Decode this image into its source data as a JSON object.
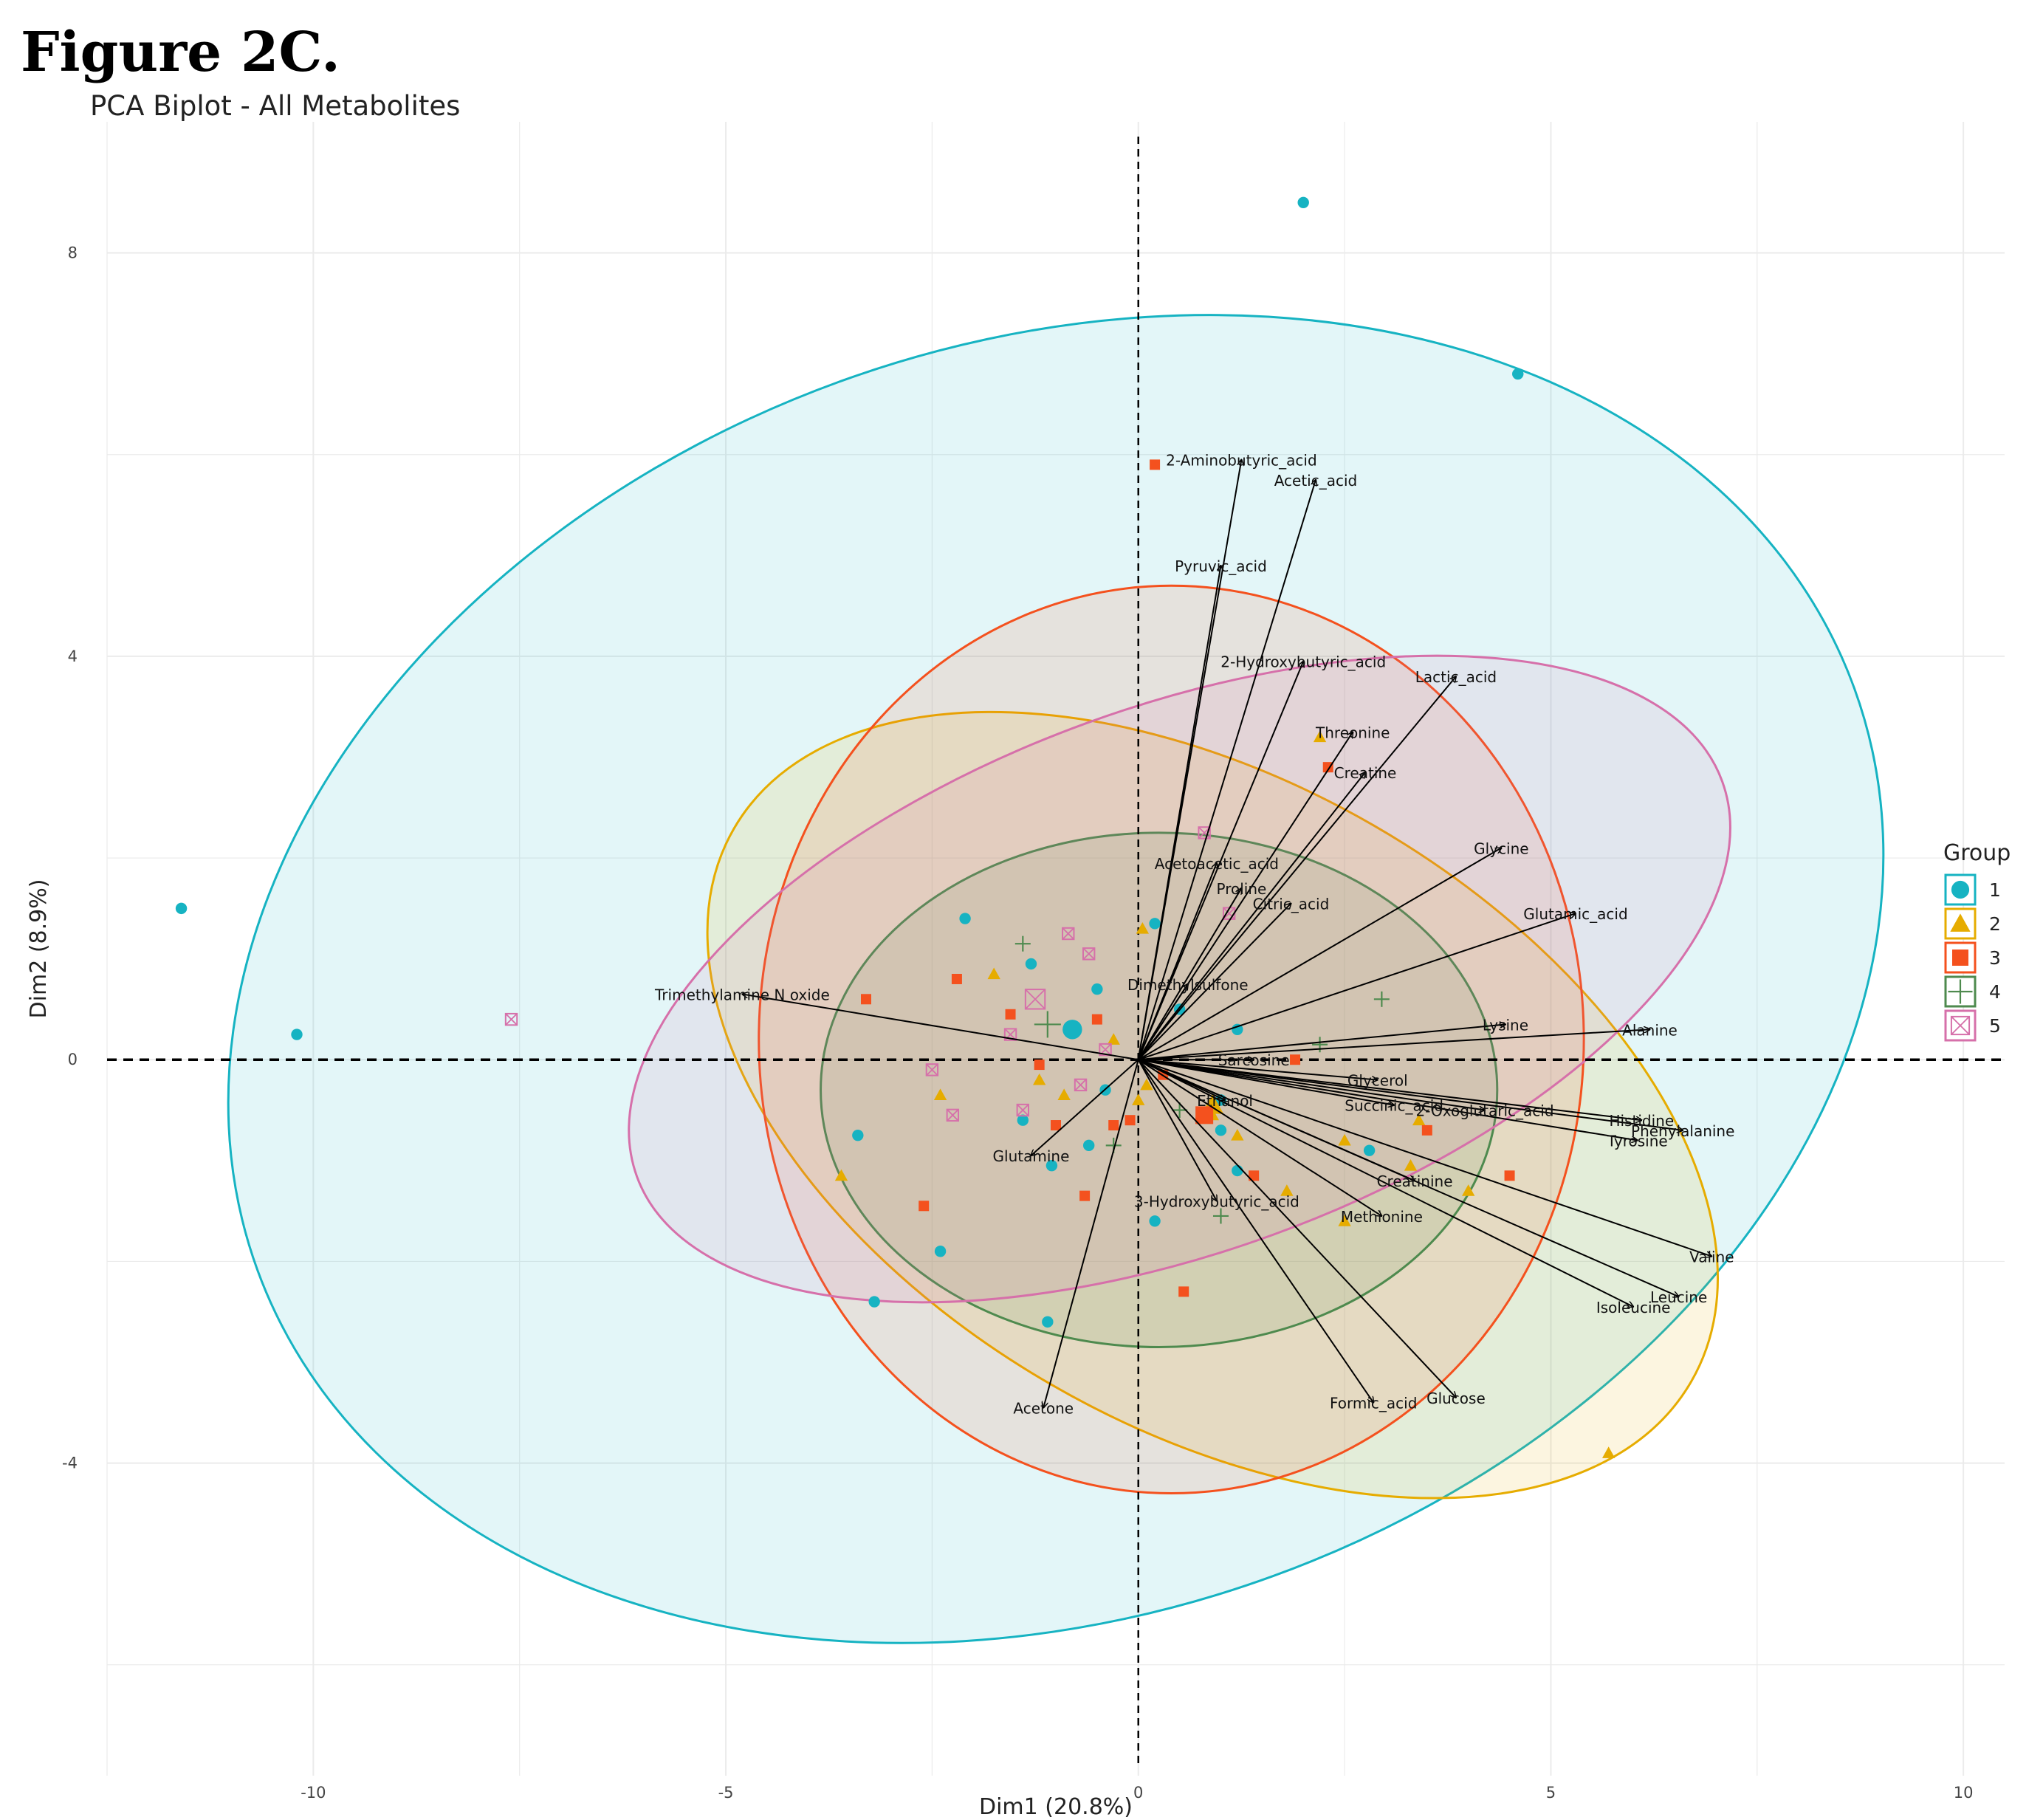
{
  "figure_label": "Figure 2C.",
  "chart_data": {
    "type": "scatter",
    "subtype": "pca-biplot",
    "title": "PCA Biplot - All Metabolites",
    "xlabel": "Dim1 (20.8%)",
    "ylabel": "Dim2 (8.9%)",
    "xlim": [
      -12.5,
      10.5
    ],
    "ylim": [
      -7.1,
      9.3
    ],
    "x_ticks": [
      -10,
      -5,
      0,
      5,
      10
    ],
    "y_ticks": [
      8,
      4,
      0,
      -4
    ],
    "grid": true,
    "reference_lines": {
      "x": 0,
      "y": 0,
      "style": "dashed"
    },
    "legend": {
      "title": "Group",
      "position": "right",
      "entries": [
        {
          "label": "1",
          "color": "#16b3c2",
          "marker": "circle"
        },
        {
          "label": "2",
          "color": "#e6ac00",
          "marker": "triangle"
        },
        {
          "label": "3",
          "color": "#f4511e",
          "marker": "square"
        },
        {
          "label": "4",
          "color": "#4e8a4e",
          "marker": "plus"
        },
        {
          "label": "5",
          "color": "#d670aa",
          "marker": "square-x"
        }
      ]
    },
    "groups": [
      {
        "name": "1",
        "color": "#16b3c2",
        "marker": "circle",
        "ellipse": {
          "center": [
            -1.0,
            0.8
          ],
          "rx": 10.3,
          "ry": 6.3,
          "angle_deg": 20
        },
        "centroid": [
          -0.8,
          0.3
        ],
        "points": [
          [
            2.0,
            8.5
          ],
          [
            4.6,
            6.8
          ],
          [
            -11.6,
            1.5
          ],
          [
            -10.2,
            0.25
          ],
          [
            -2.1,
            1.4
          ],
          [
            -1.3,
            0.95
          ],
          [
            -0.5,
            0.7
          ],
          [
            0.2,
            1.35
          ],
          [
            -1.4,
            -0.6
          ],
          [
            -1.05,
            -1.05
          ],
          [
            -0.6,
            -0.85
          ],
          [
            -3.4,
            -0.75
          ],
          [
            -2.4,
            -1.9
          ],
          [
            -3.2,
            -2.4
          ],
          [
            -1.1,
            -2.6
          ],
          [
            0.2,
            -1.6
          ],
          [
            1.2,
            -1.1
          ],
          [
            2.8,
            -0.9
          ],
          [
            1.0,
            -0.4
          ],
          [
            0.8,
            -0.55
          ],
          [
            0.5,
            0.5
          ],
          [
            1.2,
            0.3
          ],
          [
            -0.4,
            -0.3
          ],
          [
            1.0,
            -0.7
          ]
        ]
      },
      {
        "name": "2",
        "color": "#e6ac00",
        "marker": "triangle",
        "ellipse": {
          "center": [
            0.9,
            -0.45
          ],
          "rx": 6.7,
          "ry": 3.2,
          "angle_deg": -30
        },
        "centroid": [
          0.9,
          -0.45
        ],
        "points": [
          [
            2.2,
            3.2
          ],
          [
            0.05,
            1.3
          ],
          [
            -1.75,
            0.85
          ],
          [
            -2.4,
            -0.35
          ],
          [
            -1.2,
            -0.2
          ],
          [
            -0.9,
            -0.35
          ],
          [
            -3.6,
            -1.15
          ],
          [
            0.1,
            -0.25
          ],
          [
            1.2,
            -0.75
          ],
          [
            1.8,
            -1.3
          ],
          [
            2.5,
            -0.8
          ],
          [
            2.5,
            -1.6
          ],
          [
            3.4,
            -0.6
          ],
          [
            3.3,
            -1.05
          ],
          [
            4.0,
            -1.3
          ],
          [
            5.7,
            -3.9
          ],
          [
            0.0,
            -0.4
          ],
          [
            0.9,
            -0.55
          ],
          [
            -0.3,
            0.2
          ]
        ]
      },
      {
        "name": "3",
        "color": "#f4511e",
        "marker": "square",
        "ellipse": {
          "center": [
            0.4,
            0.2
          ],
          "rx": 5.0,
          "ry": 4.5,
          "angle_deg": 0
        },
        "centroid": [
          0.8,
          -0.55
        ],
        "points": [
          [
            0.2,
            5.9
          ],
          [
            2.3,
            2.9
          ],
          [
            -3.3,
            0.6
          ],
          [
            -2.2,
            0.8
          ],
          [
            -1.55,
            0.45
          ],
          [
            -0.5,
            0.4
          ],
          [
            -1.2,
            -0.05
          ],
          [
            -1.0,
            -0.65
          ],
          [
            -0.3,
            -0.65
          ],
          [
            -0.1,
            -0.6
          ],
          [
            -0.65,
            -1.35
          ],
          [
            -2.6,
            -1.45
          ],
          [
            1.4,
            -1.15
          ],
          [
            3.5,
            -0.7
          ],
          [
            4.5,
            -1.15
          ],
          [
            0.55,
            -2.3
          ],
          [
            1.9,
            0.0
          ],
          [
            0.3,
            -0.15
          ]
        ]
      },
      {
        "name": "4",
        "color": "#4e8a4e",
        "marker": "plus",
        "ellipse": {
          "center": [
            0.25,
            -0.3
          ],
          "rx": 4.1,
          "ry": 2.55,
          "angle_deg": 0
        },
        "centroid": [
          -1.1,
          0.35
        ],
        "points": [
          [
            -1.4,
            1.15
          ],
          [
            2.95,
            0.6
          ],
          [
            1.0,
            -1.55
          ],
          [
            2.2,
            0.15
          ],
          [
            -0.3,
            -0.85
          ],
          [
            0.5,
            -0.5
          ]
        ]
      },
      {
        "name": "5",
        "color": "#d670aa",
        "marker": "square-x",
        "ellipse": {
          "center": [
            0.5,
            0.8
          ],
          "rx": 7.0,
          "ry": 2.7,
          "angle_deg": 20
        },
        "centroid": [
          -1.25,
          0.6
        ],
        "points": [
          [
            -7.6,
            0.4
          ],
          [
            -0.85,
            1.25
          ],
          [
            -0.6,
            1.05
          ],
          [
            0.8,
            2.25
          ],
          [
            1.1,
            1.45
          ],
          [
            -2.5,
            -0.1
          ],
          [
            -2.25,
            -0.55
          ],
          [
            -1.4,
            -0.5
          ],
          [
            -0.7,
            -0.25
          ],
          [
            -0.4,
            0.1
          ],
          [
            -1.55,
            0.25
          ]
        ]
      }
    ],
    "loadings": [
      {
        "name": "2-Aminobutyric_acid",
        "x": 1.25,
        "y": 5.95
      },
      {
        "name": "Acetic_acid",
        "x": 2.15,
        "y": 5.75
      },
      {
        "name": "Pyruvic_acid",
        "x": 1.0,
        "y": 4.9
      },
      {
        "name": "2-Hydroxybutyric_acid",
        "x": 2.0,
        "y": 3.95
      },
      {
        "name": "Lactic_acid",
        "x": 3.85,
        "y": 3.8
      },
      {
        "name": "Threonine",
        "x": 2.6,
        "y": 3.25
      },
      {
        "name": "Creatine",
        "x": 2.75,
        "y": 2.85
      },
      {
        "name": "Glycine",
        "x": 4.4,
        "y": 2.1
      },
      {
        "name": "Glutamic_acid",
        "x": 5.3,
        "y": 1.45
      },
      {
        "name": "Acetoacetic_acid",
        "x": 0.95,
        "y": 1.95
      },
      {
        "name": "Proline",
        "x": 1.25,
        "y": 1.7
      },
      {
        "name": "Citric_acid",
        "x": 1.85,
        "y": 1.55
      },
      {
        "name": "Dimethylsulfone",
        "x": 0.6,
        "y": 0.75
      },
      {
        "name": "Trimethylamine N oxide",
        "x": -4.8,
        "y": 0.65
      },
      {
        "name": "Lysine",
        "x": 4.45,
        "y": 0.35
      },
      {
        "name": "Alanine",
        "x": 6.2,
        "y": 0.3
      },
      {
        "name": "Sarcosine",
        "x": 1.4,
        "y": 0.0
      },
      {
        "name": "Glycerol",
        "x": 2.9,
        "y": -0.2
      },
      {
        "name": "Histidine",
        "x": 6.1,
        "y": -0.6
      },
      {
        "name": "Succinic_acid",
        "x": 3.1,
        "y": -0.45
      },
      {
        "name": "Ethanol",
        "x": 1.05,
        "y": -0.4
      },
      {
        "name": "2-Oxoglutaric_acid",
        "x": 4.2,
        "y": -0.5
      },
      {
        "name": "Phenylalanine",
        "x": 6.6,
        "y": -0.7
      },
      {
        "name": "Tyrosine",
        "x": 6.05,
        "y": -0.8
      },
      {
        "name": "Glutamine",
        "x": -1.3,
        "y": -0.95
      },
      {
        "name": "3-Hydroxybutyric_acid",
        "x": 0.95,
        "y": -1.4
      },
      {
        "name": "Creatinine",
        "x": 3.35,
        "y": -1.2
      },
      {
        "name": "Methionine",
        "x": 2.95,
        "y": -1.55
      },
      {
        "name": "Valine",
        "x": 6.95,
        "y": -1.95
      },
      {
        "name": "Leucine",
        "x": 6.55,
        "y": -2.35
      },
      {
        "name": "Isoleucine",
        "x": 6.0,
        "y": -2.45
      },
      {
        "name": "Glucose",
        "x": 3.85,
        "y": -3.35
      },
      {
        "name": "Formic_acid",
        "x": 2.85,
        "y": -3.4
      },
      {
        "name": "Acetone",
        "x": -1.15,
        "y": -3.45
      }
    ]
  }
}
